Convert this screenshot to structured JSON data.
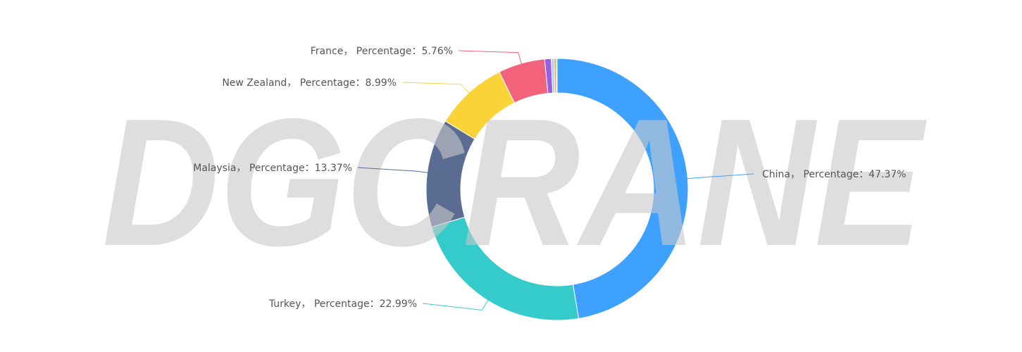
{
  "watermark": {
    "text": "DGCRANE",
    "color": "#c8c8c8"
  },
  "chart_data": {
    "type": "pie",
    "variant": "donut",
    "title": "",
    "label_color": "#555555",
    "label_prefix_sep": "， ",
    "label_mid": "Percentage：",
    "series": [
      {
        "name": "China",
        "value": 47.37,
        "color": "#3fa1ff",
        "label": "China， Percentage：47.37%"
      },
      {
        "name": "Turkey",
        "value": 22.99,
        "color": "#36cbcb",
        "label": "Turkey， Percentage：22.99%"
      },
      {
        "name": "Malaysia",
        "value": 13.37,
        "color": "#5a6c91",
        "label": "Malaysia， Percentage：13.37%"
      },
      {
        "name": "New Zealand",
        "value": 8.99,
        "color": "#fad337",
        "label": "New Zealand， Percentage：8.99%"
      },
      {
        "name": "France",
        "value": 5.76,
        "color": "#f2637b",
        "label": "France， Percentage：5.76%"
      },
      {
        "name": "",
        "value": 0.8,
        "color": "#975fe4",
        "label": ""
      },
      {
        "name": "",
        "value": 0.35,
        "color": "#b0cdf5",
        "label": ""
      },
      {
        "name": "",
        "value": 0.25,
        "color": "#e8a048",
        "label": ""
      },
      {
        "name": "",
        "value": 0.12,
        "color": "#4ecb73",
        "label": ""
      }
    ],
    "legend": "none"
  }
}
